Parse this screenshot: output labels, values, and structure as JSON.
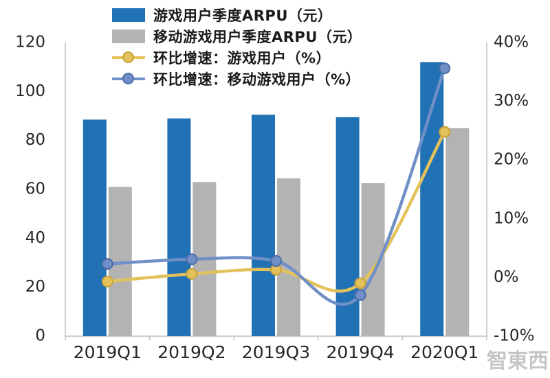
{
  "chart_data": {
    "type": "combo-bar-line",
    "categories": [
      "2019Q1",
      "2019Q2",
      "2019Q3",
      "2019Q4",
      "2020Q1"
    ],
    "bar_series": [
      {
        "name": "游戏用户季度ARPU（元）",
        "color": "#2171b5",
        "axis": "left",
        "values": [
          88.5,
          89,
          90.5,
          89.5,
          112
        ]
      },
      {
        "name": "移动游戏用户季度ARPU（元）",
        "color": "#b3b3b3",
        "axis": "left",
        "values": [
          61,
          63,
          64.5,
          62.5,
          85
        ]
      }
    ],
    "line_series": [
      {
        "name": "环比增速：游戏用户（%）",
        "color": "#e3c25b",
        "marker_border": "#c9a23c",
        "axis": "right",
        "values": [
          -0.7,
          0.6,
          1.3,
          -1,
          24.8
        ]
      },
      {
        "name": "环比增速：移动游戏用户（%）",
        "color": "#6f8fc6",
        "marker_border": "#4a6da8",
        "axis": "right",
        "values": [
          2.3,
          3.1,
          2.8,
          -3,
          35.6
        ]
      }
    ],
    "left_axis": {
      "min": 0,
      "max": 120,
      "step": 20,
      "ticks": [
        "0",
        "20",
        "40",
        "60",
        "80",
        "100",
        "120"
      ]
    },
    "right_axis": {
      "min": -10,
      "max": 40,
      "step": 10,
      "ticks": [
        "-10%",
        "0%",
        "10%",
        "20%",
        "30%",
        "40%"
      ]
    },
    "grid": "off",
    "legend_position": "top-left"
  },
  "watermark": "智東西"
}
